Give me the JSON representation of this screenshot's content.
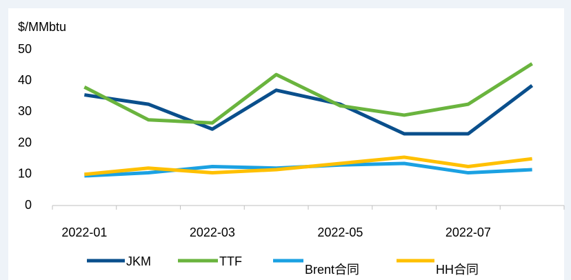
{
  "chart_data": {
    "type": "line",
    "y_label": "$/MMbtu",
    "categories": [
      "2022-01",
      null,
      "2022-03",
      null,
      "2022-05",
      null,
      "2022-07",
      null
    ],
    "series": [
      {
        "name": "JKM",
        "color": "#0a4f8c",
        "values": [
          35.5,
          32.5,
          24.5,
          37,
          32.5,
          23,
          23,
          38.5
        ]
      },
      {
        "name": "TTF",
        "color": "#6ab43e",
        "values": [
          38,
          27.5,
          26.5,
          42,
          32,
          29,
          32.5,
          45.5
        ]
      },
      {
        "name": "Brent合同",
        "color": "#1ba1e2",
        "values": [
          9.5,
          10.5,
          12.5,
          12,
          13,
          13.5,
          10.5,
          11.5
        ]
      },
      {
        "name": "HH合同",
        "color": "#ffc000",
        "values": [
          10,
          12,
          10.5,
          11.5,
          13.5,
          15.5,
          12.5,
          15
        ]
      }
    ],
    "ylim": [
      0,
      50
    ],
    "yticks": [
      0,
      10,
      20,
      30,
      40,
      50
    ],
    "grid": false
  }
}
